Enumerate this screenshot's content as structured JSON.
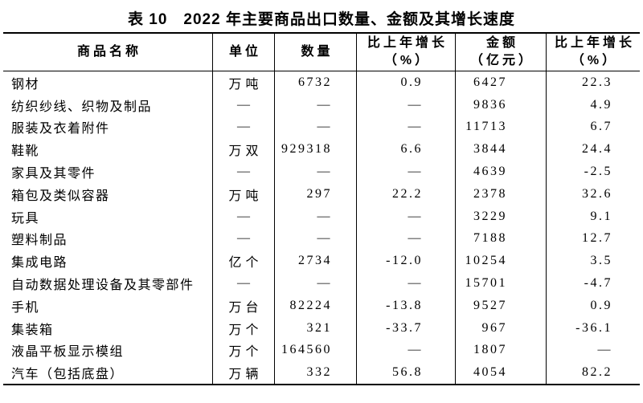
{
  "title": "表 10　2022 年主要商品出口数量、金额及其增长速度",
  "colors": {
    "text": "#000000",
    "border": "#000000",
    "background": "#ffffff"
  },
  "table": {
    "headers": [
      {
        "label": "商品名称",
        "sub": ""
      },
      {
        "label": "单位",
        "sub": ""
      },
      {
        "label": "数量",
        "sub": ""
      },
      {
        "label": "比上年增长",
        "sub": "（%）"
      },
      {
        "label": "金额",
        "sub": "（亿元）"
      },
      {
        "label": "比上年增长",
        "sub": "（%）"
      }
    ],
    "rows": [
      {
        "name": "钢材",
        "unit": "万吨",
        "quantity": "6732",
        "quantity_growth": "0.9",
        "amount": "6427",
        "amount_growth": "22.3"
      },
      {
        "name": "纺织纱线、织物及制品",
        "unit": "—",
        "quantity": "—",
        "quantity_growth": "—",
        "amount": "9836",
        "amount_growth": "4.9"
      },
      {
        "name": "服装及衣着附件",
        "unit": "—",
        "quantity": "—",
        "quantity_growth": "—",
        "amount": "11713",
        "amount_growth": "6.7"
      },
      {
        "name": "鞋靴",
        "unit": "万双",
        "quantity": "929318",
        "quantity_growth": "6.6",
        "amount": "3844",
        "amount_growth": "24.4"
      },
      {
        "name": "家具及其零件",
        "unit": "—",
        "quantity": "—",
        "quantity_growth": "—",
        "amount": "4639",
        "amount_growth": "-2.5"
      },
      {
        "name": "箱包及类似容器",
        "unit": "万吨",
        "quantity": "297",
        "quantity_growth": "22.2",
        "amount": "2378",
        "amount_growth": "32.6"
      },
      {
        "name": "玩具",
        "unit": "—",
        "quantity": "—",
        "quantity_growth": "—",
        "amount": "3229",
        "amount_growth": "9.1"
      },
      {
        "name": "塑料制品",
        "unit": "—",
        "quantity": "—",
        "quantity_growth": "—",
        "amount": "7188",
        "amount_growth": "12.7"
      },
      {
        "name": "集成电路",
        "unit": "亿个",
        "quantity": "2734",
        "quantity_growth": "-12.0",
        "amount": "10254",
        "amount_growth": "3.5"
      },
      {
        "name": "自动数据处理设备及其零部件",
        "unit": "—",
        "quantity": "—",
        "quantity_growth": "—",
        "amount": "15701",
        "amount_growth": "-4.7"
      },
      {
        "name": "手机",
        "unit": "万台",
        "quantity": "82224",
        "quantity_growth": "-13.8",
        "amount": "9527",
        "amount_growth": "0.9"
      },
      {
        "name": "集装箱",
        "unit": "万个",
        "quantity": "321",
        "quantity_growth": "-33.7",
        "amount": "967",
        "amount_growth": "-36.1"
      },
      {
        "name": "液晶平板显示模组",
        "unit": "万个",
        "quantity": "164560",
        "quantity_growth": "—",
        "amount": "1807",
        "amount_growth": "—"
      },
      {
        "name": "汽车（包括底盘）",
        "unit": "万辆",
        "quantity": "332",
        "quantity_growth": "56.8",
        "amount": "4054",
        "amount_growth": "82.2"
      }
    ]
  }
}
